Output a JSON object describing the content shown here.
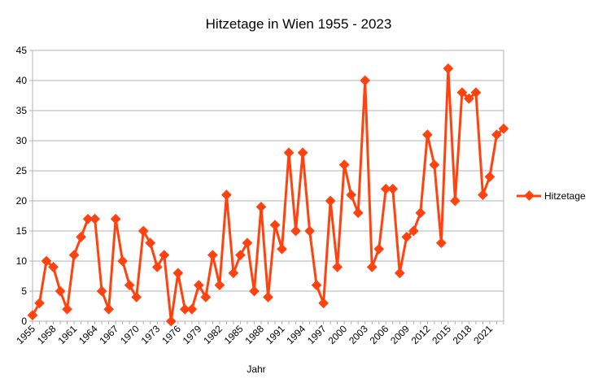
{
  "chart_data": {
    "type": "line",
    "title": "Hitzetage in Wien 1955 - 2023",
    "xlabel": "Jahr",
    "ylabel": "",
    "ylim": [
      0,
      45
    ],
    "yticks": [
      0,
      5,
      10,
      15,
      20,
      25,
      30,
      35,
      40,
      45
    ],
    "xtick_labels": [
      "1955",
      "1958",
      "1961",
      "1964",
      "1967",
      "1970",
      "1973",
      "1976",
      "1979",
      "1982",
      "1985",
      "1988",
      "1991",
      "1994",
      "1997",
      "2000",
      "2003",
      "2006",
      "2009",
      "2012",
      "2015",
      "2018",
      "2021"
    ],
    "grid": "horizontal",
    "legend_position": "right",
    "x": [
      1955,
      1956,
      1957,
      1958,
      1959,
      1960,
      1961,
      1962,
      1963,
      1964,
      1965,
      1966,
      1967,
      1968,
      1969,
      1970,
      1971,
      1972,
      1973,
      1974,
      1975,
      1976,
      1977,
      1978,
      1979,
      1980,
      1981,
      1982,
      1983,
      1984,
      1985,
      1986,
      1987,
      1988,
      1989,
      1990,
      1991,
      1992,
      1993,
      1994,
      1995,
      1996,
      1997,
      1998,
      1999,
      2000,
      2001,
      2002,
      2003,
      2004,
      2005,
      2006,
      2007,
      2008,
      2009,
      2010,
      2011,
      2012,
      2013,
      2014,
      2015,
      2016,
      2017,
      2018,
      2019,
      2020,
      2021,
      2022,
      2023
    ],
    "series": [
      {
        "name": "Hitzetage",
        "color": "#ff420e",
        "values": [
          1,
          3,
          10,
          9,
          5,
          2,
          11,
          14,
          17,
          17,
          5,
          2,
          17,
          10,
          6,
          4,
          15,
          13,
          9,
          11,
          0,
          8,
          2,
          2,
          6,
          4,
          11,
          6,
          21,
          8,
          11,
          13,
          5,
          19,
          4,
          16,
          12,
          28,
          15,
          28,
          15,
          6,
          3,
          20,
          9,
          26,
          21,
          18,
          40,
          9,
          12,
          22,
          22,
          8,
          14,
          15,
          18,
          31,
          26,
          13,
          42,
          20,
          38,
          37,
          38,
          21,
          24,
          31,
          32
        ]
      }
    ]
  }
}
